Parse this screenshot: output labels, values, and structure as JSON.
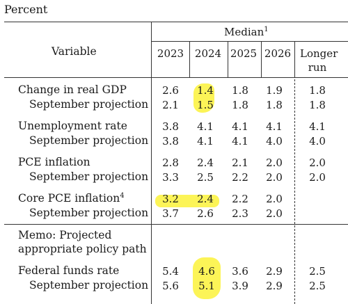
{
  "unit_label": "Percent",
  "header": {
    "median_label": "Median",
    "median_sup": "1",
    "variable_label": "Variable",
    "years": [
      "2023",
      "2024",
      "2025",
      "2026"
    ],
    "longer_run_line1": "Longer",
    "longer_run_line2": "run"
  },
  "rows": [
    {
      "label": "Change in real GDP",
      "sup": "",
      "values": [
        "2.6",
        "1.4",
        "1.8",
        "1.9",
        "1.8"
      ]
    },
    {
      "label": "September projection",
      "sup": "",
      "values": [
        "2.1",
        "1.5",
        "1.8",
        "1.8",
        "1.8"
      ]
    },
    {
      "label": "Unemployment rate",
      "sup": "",
      "values": [
        "3.8",
        "4.1",
        "4.1",
        "4.1",
        "4.1"
      ]
    },
    {
      "label": "September projection",
      "sup": "",
      "values": [
        "3.8",
        "4.1",
        "4.1",
        "4.0",
        "4.0"
      ]
    },
    {
      "label": "PCE inflation",
      "sup": "",
      "values": [
        "2.8",
        "2.4",
        "2.1",
        "2.0",
        "2.0"
      ]
    },
    {
      "label": "September projection",
      "sup": "",
      "values": [
        "3.3",
        "2.5",
        "2.2",
        "2.0",
        "2.0"
      ]
    },
    {
      "label": "Core PCE inflation",
      "sup": "4",
      "values": [
        "3.2",
        "2.4",
        "2.2",
        "2.0",
        ""
      ]
    },
    {
      "label": "September projection",
      "sup": "",
      "values": [
        "3.7",
        "2.6",
        "2.3",
        "2.0",
        ""
      ]
    }
  ],
  "memo": {
    "line1": "Memo:  Projected",
    "line2": "appropriate policy path"
  },
  "memo_rows": [
    {
      "label": "Federal funds rate",
      "values": [
        "5.4",
        "4.6",
        "3.6",
        "2.9",
        "2.5"
      ]
    },
    {
      "label": "September projection",
      "values": [
        "5.6",
        "5.1",
        "3.9",
        "2.9",
        "2.5"
      ]
    }
  ],
  "highlight_color": "#fbf23a"
}
